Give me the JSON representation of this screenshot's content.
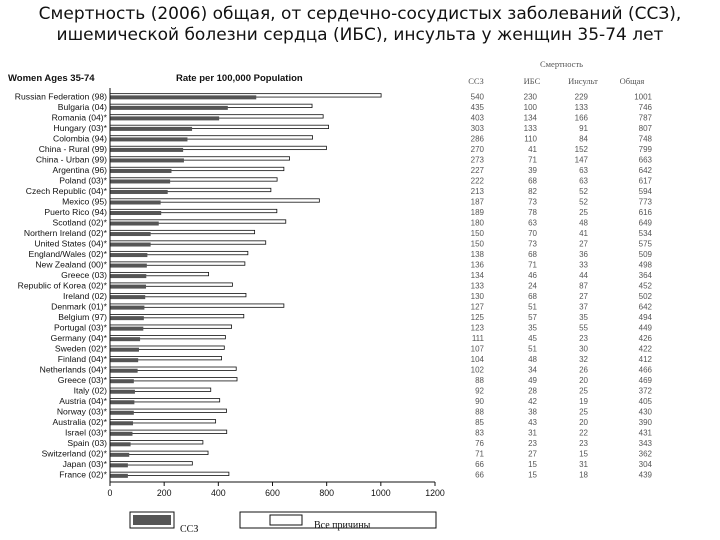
{
  "title": {
    "line1": "Смертность (2006) общая, от сердечно-сосудистых заболеваний (ССЗ),",
    "line2": "ишемической болезни сердца (ИБС), инсульта у женщин 35-74 лет"
  },
  "chart_data": {
    "type": "bar",
    "title": "Women Ages 35-74",
    "xlabel": "Rate per 100,000 Population",
    "xlim": [
      0,
      1200
    ],
    "xticks": [
      0,
      200,
      400,
      600,
      800,
      1000,
      1200
    ],
    "categories": [
      "Russian Federation (98)",
      "Bulgaria (04)",
      "Romania (04)*",
      "Hungary (03)*",
      "Colombia (94)",
      "China - Rural (99)",
      "China - Urban (99)",
      "Argentina (96)",
      "Poland (03)*",
      "Czech Republic (04)*",
      "Mexico (95)",
      "Puerto Rico (94)",
      "Scotland (02)*",
      "Northern Ireland (02)*",
      "United States (04)*",
      "England/Wales (02)*",
      "New Zealand (00)*",
      "Greece (03)",
      "Republic of Korea (02)*",
      "Ireland (02)",
      "Denmark (01)*",
      "Belgium (97)",
      "Portugal (03)*",
      "Germany (04)*",
      "Sweden (02)*",
      "Finland (04)*",
      "Netherlands (04)*",
      "Greece (03)*",
      "Italy (02)",
      "Austria (04)*",
      "Norway (03)*",
      "Australia (02)*",
      "Israel (03)*",
      "Spain (03)",
      "Switzerland (02)*",
      "Japan (03)*",
      "France (02)*"
    ],
    "series": [
      {
        "name": "ССЗ",
        "color": "#555555",
        "values": [
          540,
          435,
          403,
          303,
          286,
          270,
          273,
          227,
          222,
          213,
          187,
          189,
          180,
          150,
          150,
          138,
          136,
          134,
          133,
          130,
          127,
          125,
          123,
          111,
          107,
          104,
          102,
          88,
          92,
          90,
          88,
          85,
          83,
          76,
          71,
          66,
          66
        ]
      },
      {
        "name": "Все причины",
        "color": "#ffffff",
        "values": [
          1001,
          746,
          787,
          807,
          748,
          799,
          663,
          642,
          617,
          594,
          773,
          616,
          649,
          534,
          575,
          509,
          498,
          364,
          452,
          502,
          642,
          494,
          449,
          426,
          422,
          412,
          466,
          469,
          372,
          405,
          430,
          390,
          431,
          343,
          362,
          304,
          439
        ]
      }
    ],
    "table": {
      "group_header": "Смертность",
      "columns": [
        "ССЗ",
        "ИБС",
        "Инсульт",
        "Общая"
      ],
      "rows": [
        [
          "540",
          "230",
          "229",
          "1001"
        ],
        [
          "435",
          "100",
          "133",
          "746"
        ],
        [
          "403",
          "134",
          "166",
          "787"
        ],
        [
          "303",
          "133",
          "91",
          "807"
        ],
        [
          "286",
          "110",
          "84",
          "748"
        ],
        [
          "270",
          "41",
          "152",
          "799"
        ],
        [
          "273",
          "71",
          "147",
          "663"
        ],
        [
          "227",
          "39",
          "63",
          "642"
        ],
        [
          "222",
          "68",
          "63",
          "617"
        ],
        [
          "213",
          "82",
          "52",
          "594"
        ],
        [
          "187",
          "73",
          "52",
          "773"
        ],
        [
          "189",
          "78",
          "25",
          "616"
        ],
        [
          "180",
          "63",
          "48",
          "649"
        ],
        [
          "150",
          "70",
          "41",
          "534"
        ],
        [
          "150",
          "73",
          "27",
          "575"
        ],
        [
          "138",
          "68",
          "36",
          "509"
        ],
        [
          "136",
          "71",
          "33",
          "498"
        ],
        [
          "134",
          "46",
          "44",
          "364"
        ],
        [
          "133",
          "24",
          "87",
          "452"
        ],
        [
          "130",
          "68",
          "27",
          "502"
        ],
        [
          "127",
          "51",
          "37",
          "642"
        ],
        [
          "125",
          "57",
          "35",
          "494"
        ],
        [
          "123",
          "35",
          "55",
          "449"
        ],
        [
          "111",
          "45",
          "23",
          "426"
        ],
        [
          "107",
          "51",
          "30",
          "422"
        ],
        [
          "104",
          "48",
          "32",
          "412"
        ],
        [
          "102",
          "34",
          "26",
          "466"
        ],
        [
          "88",
          "49",
          "20",
          "469"
        ],
        [
          "92",
          "28",
          "25",
          "372"
        ],
        [
          "90",
          "42",
          "19",
          "405"
        ],
        [
          "88",
          "38",
          "25",
          "430"
        ],
        [
          "85",
          "43",
          "20",
          "390"
        ],
        [
          "83",
          "31",
          "22",
          "431"
        ],
        [
          "76",
          "23",
          "23",
          "343"
        ],
        [
          "71",
          "27",
          "15",
          "362"
        ],
        [
          "66",
          "15",
          "31",
          "304"
        ],
        [
          "66",
          "15",
          "18",
          "439"
        ]
      ]
    },
    "legend": {
      "placement": "bottom",
      "entries": [
        "ССЗ",
        "Все причины"
      ]
    }
  }
}
